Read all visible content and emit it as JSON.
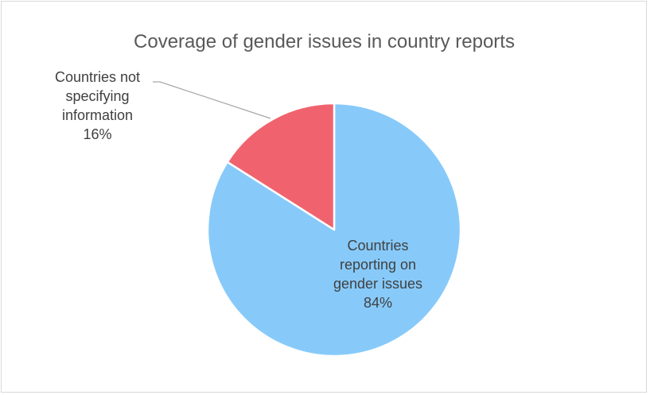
{
  "chart_data": {
    "type": "pie",
    "title": "Coverage of gender issues in country reports",
    "slices": [
      {
        "label_lines": [
          "Countries",
          "reporting on",
          "gender issues"
        ],
        "value": 84,
        "value_label": "84%",
        "color": "#87CAFA"
      },
      {
        "label_lines": [
          "Countries not",
          "specifying",
          "information"
        ],
        "value": 16,
        "value_label": "16%",
        "color": "#F0636E"
      }
    ],
    "start_angle_deg": 0,
    "direction": "clockwise",
    "legend": "none",
    "leader_line_color": "#a6a6a6"
  }
}
